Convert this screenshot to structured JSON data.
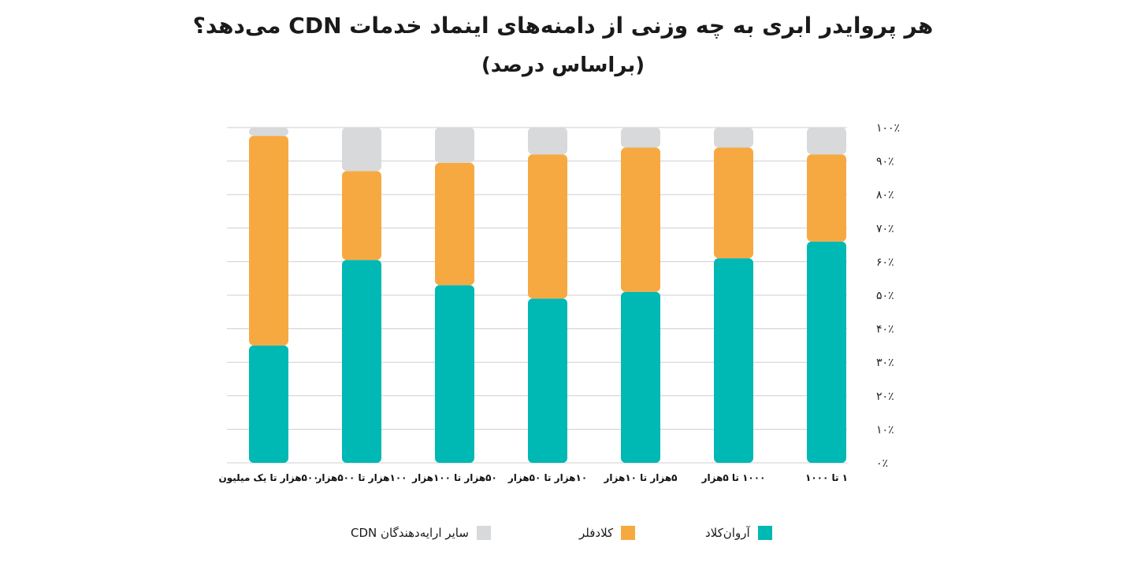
{
  "title": "هر پروایدر ابری به چه وزنی از دامنه‌های اینماد خدمات CDN می‌دهد؟",
  "subtitle": "(براساس درصد)",
  "colors": {
    "arvan": "#00b8b4",
    "cloudflare": "#f7a941",
    "other": "#d8d9da",
    "grid": "#cfcfcf"
  },
  "chart_data": {
    "type": "bar",
    "stacked": true,
    "categories": [
      "۱ تا ۱۰۰۰",
      "۱۰۰۰ تا ۵هزار",
      "۵هزار تا ۱۰هزار",
      "۱۰هزار تا ۵۰هزار",
      "۵۰هزار تا ۱۰۰هزار",
      "۱۰۰هزار تا ۵۰۰هزار",
      "۵۰۰هزار تا یک میلیون"
    ],
    "series": [
      {
        "name": "آروان‌کلاد",
        "color": "#00b8b4",
        "values": [
          66,
          61,
          51,
          49,
          53,
          60.5,
          35
        ]
      },
      {
        "name": "کلادفلر",
        "color": "#f7a941",
        "values": [
          26,
          33,
          43,
          43,
          36.5,
          26.5,
          62.5
        ]
      },
      {
        "name": "سایر ارایه‌دهندگان CDN",
        "color": "#d8d9da",
        "values": [
          8,
          6,
          6,
          8,
          10.5,
          13,
          2.5
        ]
      }
    ],
    "ylim": [
      0,
      100
    ],
    "yticks": [
      "۰٪",
      "۱۰٪",
      "۲۰٪",
      "۳۰٪",
      "۴۰٪",
      "۵۰٪",
      "۶۰٪",
      "۷۰٪",
      "۸۰٪",
      "۹۰٪",
      "۱۰۰٪"
    ],
    "grid": true,
    "legend": "bottom"
  }
}
